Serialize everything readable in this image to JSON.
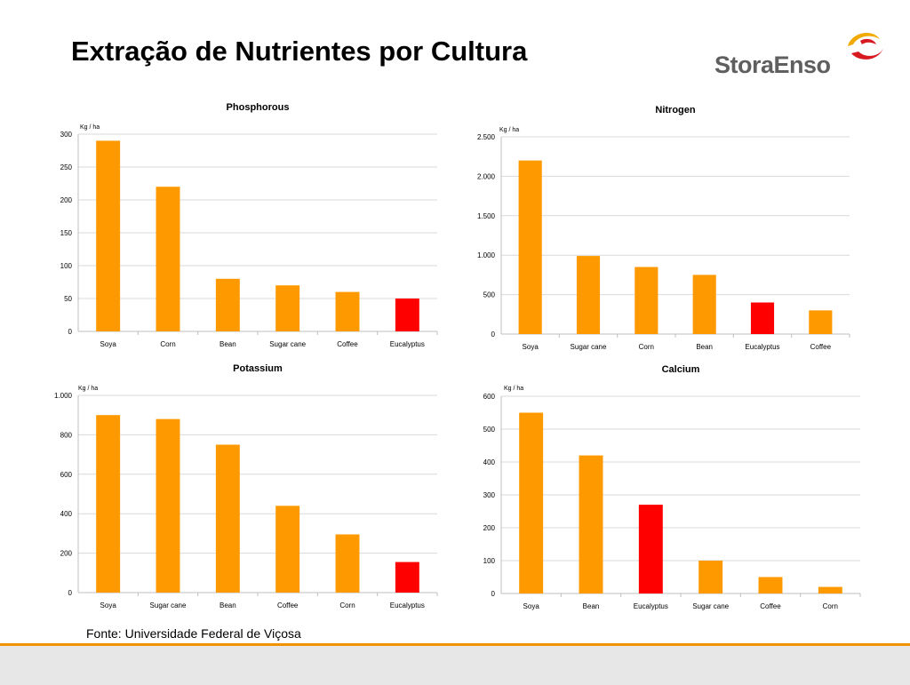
{
  "title": "Extração de Nutrientes por Cultura",
  "logo": {
    "text": "StoraEnso",
    "icon": "storaenso-logo-icon"
  },
  "footnote": "Fonte: Universidade Federal de Viçosa",
  "colors": {
    "bar": "#ff9900",
    "highlight": "#ff0000",
    "grid": "#d9d9d9",
    "footer_accent": "#f39200",
    "footer_band": "#e7e7e7"
  },
  "chart_data": [
    {
      "type": "bar",
      "title": "Phosphorous",
      "unit": "Kg / ha",
      "categories": [
        "Soya",
        "Corn",
        "Bean",
        "Sugar cane",
        "Coffee",
        "Eucalyptus"
      ],
      "values": [
        290,
        220,
        80,
        70,
        60,
        50
      ],
      "highlight": "Eucalyptus",
      "ylim": [
        0,
        300
      ],
      "yticks": [
        0,
        50,
        100,
        150,
        200,
        250,
        300
      ],
      "ytick_labels": [
        "0",
        "50",
        "100",
        "150",
        "200",
        "250",
        "300"
      ],
      "grid": true
    },
    {
      "type": "bar",
      "title": "Nitrogen",
      "unit": "Kg / ha",
      "categories": [
        "Soya",
        "Sugar cane",
        "Corn",
        "Bean",
        "Eucalyptus",
        "Coffee"
      ],
      "values": [
        2200,
        990,
        850,
        750,
        400,
        300
      ],
      "highlight": "Eucalyptus",
      "ylim": [
        0,
        2500
      ],
      "yticks": [
        0,
        500,
        1000,
        1500,
        2000,
        2500
      ],
      "ytick_labels": [
        "0",
        "500",
        "1.000",
        "1.500",
        "2.000",
        "2.500"
      ],
      "grid": true
    },
    {
      "type": "bar",
      "title": "Potassium",
      "unit": "Kg / ha",
      "categories": [
        "Soya",
        "Sugar cane",
        "Bean",
        "Coffee",
        "Corn",
        "Eucalyptus"
      ],
      "values": [
        900,
        880,
        750,
        440,
        295,
        155
      ],
      "highlight": "Eucalyptus",
      "ylim": [
        0,
        1000
      ],
      "yticks": [
        0,
        200,
        400,
        600,
        800,
        1000
      ],
      "ytick_labels": [
        "0",
        "200",
        "400",
        "600",
        "800",
        "1.000"
      ],
      "grid": true
    },
    {
      "type": "bar",
      "title": "Calcium",
      "unit": "Kg / ha",
      "categories": [
        "Soya",
        "Bean",
        "Eucalyptus",
        "Sugar cane",
        "Coffee",
        "Corn"
      ],
      "values": [
        550,
        420,
        270,
        100,
        50,
        20
      ],
      "highlight": "Eucalyptus",
      "ylim": [
        0,
        600
      ],
      "yticks": [
        0,
        100,
        200,
        300,
        400,
        500,
        600
      ],
      "ytick_labels": [
        "0",
        "100",
        "200",
        "300",
        "400",
        "500",
        "600"
      ],
      "grid": true
    }
  ]
}
